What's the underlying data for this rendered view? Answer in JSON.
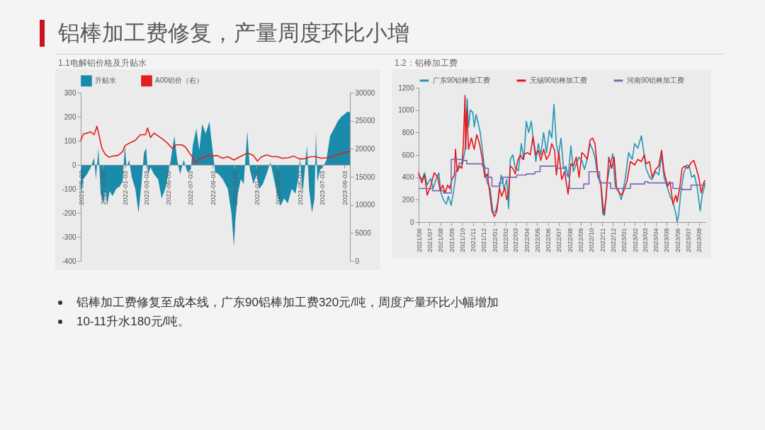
{
  "chart_data": [
    {
      "type": "area",
      "title": "1.1电解铝价格及升贴水",
      "legend": "top",
      "xlim": [
        "2021-09-03",
        "2023-09-18"
      ],
      "xticks": [
        "2021-09-03",
        "2021-11-03",
        "2022-01-03",
        "2022-03-03",
        "2022-05-03",
        "2022-07-03",
        "2022-09-03",
        "2022-11-03",
        "2023-01-03",
        "2023-03-03",
        "2023-05-03",
        "2023-07-03",
        "2023-09-03"
      ],
      "ylim": [
        -400,
        300
      ],
      "yticks": [
        -400,
        -300,
        -200,
        -100,
        0,
        100,
        200,
        300
      ],
      "y2lim": [
        0,
        30000
      ],
      "y2ticks": [
        0,
        5000,
        10000,
        15000,
        20000,
        25000,
        30000
      ],
      "series": [
        {
          "name": "升贴水",
          "type": "area",
          "color": "#1a8bab",
          "x": [
            "2021-09-03",
            "2021-09-10",
            "2021-09-20",
            "2021-10-01",
            "2021-10-10",
            "2021-10-15",
            "2021-10-22",
            "2021-10-28",
            "2021-11-05",
            "2021-11-10",
            "2021-11-15",
            "2021-11-22",
            "2021-11-30",
            "2021-12-10",
            "2021-12-20",
            "2021-12-28",
            "2022-01-03",
            "2022-01-08",
            "2022-01-15",
            "2022-01-22",
            "2022-02-01",
            "2022-02-10",
            "2022-02-18",
            "2022-02-25",
            "2022-03-03",
            "2022-03-08",
            "2022-03-15",
            "2022-03-25",
            "2022-04-05",
            "2022-04-15",
            "2022-04-25",
            "2022-05-03",
            "2022-05-10",
            "2022-05-20",
            "2022-05-28",
            "2022-06-05",
            "2022-06-15",
            "2022-06-25",
            "2022-07-05",
            "2022-07-10",
            "2022-07-20",
            "2022-07-28",
            "2022-08-05",
            "2022-08-15",
            "2022-08-25",
            "2022-09-03",
            "2022-09-10",
            "2022-09-20",
            "2022-10-01",
            "2022-10-15",
            "2022-10-25",
            "2022-11-01",
            "2022-11-05",
            "2022-11-12",
            "2022-11-20",
            "2022-11-28",
            "2022-12-08",
            "2022-12-15",
            "2022-12-25",
            "2023-01-03",
            "2023-01-10",
            "2023-01-20",
            "2023-01-30",
            "2023-02-10",
            "2023-02-20",
            "2023-02-28",
            "2023-03-10",
            "2023-03-20",
            "2023-03-30",
            "2023-04-10",
            "2023-04-20",
            "2023-04-28",
            "2023-05-03",
            "2023-05-10",
            "2023-05-15",
            "2023-05-22",
            "2023-05-28",
            "2023-06-05",
            "2023-06-12",
            "2023-06-16",
            "2023-06-20",
            "2023-06-28",
            "2023-07-05",
            "2023-07-15",
            "2023-07-25",
            "2023-08-05",
            "2023-08-15",
            "2023-08-25",
            "2023-09-03",
            "2023-09-10",
            "2023-09-18"
          ],
          "values": [
            -120,
            -60,
            -40,
            -10,
            30,
            -60,
            70,
            -120,
            -160,
            -100,
            -170,
            -110,
            -130,
            -100,
            -90,
            -70,
            80,
            -10,
            20,
            -50,
            -100,
            -200,
            -80,
            50,
            70,
            -40,
            -10,
            -40,
            -60,
            -140,
            -100,
            -40,
            20,
            120,
            20,
            -40,
            20,
            -30,
            -20,
            80,
            150,
            60,
            170,
            130,
            180,
            60,
            -30,
            -40,
            -60,
            -100,
            -200,
            -340,
            -230,
            -120,
            -60,
            -80,
            140,
            -20,
            -80,
            -40,
            -100,
            -80,
            -40,
            10,
            -60,
            -120,
            -170,
            -140,
            -160,
            -100,
            -120,
            -60,
            30,
            -120,
            -40,
            80,
            -100,
            -200,
            -140,
            140,
            -70,
            -20,
            -10,
            20,
            120,
            150,
            180,
            200,
            210,
            220,
            220
          ]
        },
        {
          "name": "A00铝价（右）",
          "type": "line",
          "axis": "y2",
          "color": "#e0201c",
          "x": [
            "2021-09-03",
            "2021-09-10",
            "2021-09-20",
            "2021-10-01",
            "2021-10-10",
            "2021-10-18",
            "2021-10-25",
            "2021-11-01",
            "2021-11-10",
            "2021-11-20",
            "2021-12-01",
            "2021-12-15",
            "2021-12-28",
            "2022-01-03",
            "2022-01-15",
            "2022-02-01",
            "2022-02-15",
            "2022-03-01",
            "2022-03-07",
            "2022-03-15",
            "2022-03-25",
            "2022-04-05",
            "2022-04-20",
            "2022-05-01",
            "2022-05-15",
            "2022-05-25",
            "2022-06-10",
            "2022-06-20",
            "2022-07-01",
            "2022-07-10",
            "2022-07-15",
            "2022-07-25",
            "2022-08-10",
            "2022-08-25",
            "2022-09-03",
            "2022-09-15",
            "2022-10-01",
            "2022-10-15",
            "2022-11-01",
            "2022-11-15",
            "2022-12-01",
            "2022-12-10",
            "2022-12-25",
            "2023-01-05",
            "2023-01-15",
            "2023-01-30",
            "2023-02-15",
            "2023-03-01",
            "2023-03-15",
            "2023-04-01",
            "2023-04-15",
            "2023-05-01",
            "2023-05-15",
            "2023-06-01",
            "2023-06-15",
            "2023-07-01",
            "2023-07-15",
            "2023-08-01",
            "2023-08-15",
            "2023-09-03",
            "2023-09-18"
          ],
          "values": [
            21500,
            22600,
            22800,
            23000,
            22500,
            24000,
            22000,
            20000,
            19000,
            18500,
            18700,
            18800,
            19500,
            20500,
            21000,
            21500,
            22500,
            22500,
            23700,
            22000,
            22800,
            22300,
            21600,
            21000,
            20000,
            20700,
            20700,
            20300,
            19200,
            18500,
            17500,
            18000,
            18500,
            18900,
            18700,
            18800,
            18300,
            18600,
            18000,
            18500,
            19000,
            19200,
            18800,
            17800,
            18500,
            18900,
            18600,
            18600,
            18300,
            18400,
            18700,
            18200,
            18200,
            18600,
            18600,
            18300,
            18400,
            18600,
            19000,
            19300,
            19500
          ]
        }
      ]
    },
    {
      "type": "line",
      "title": "1.2：铝棒加工费",
      "legend": "top",
      "xlim": [
        "2021-06-01",
        "2023-08-20"
      ],
      "xticks": [
        {
          "value": "2021-06",
          "label": "2021/06"
        },
        {
          "value": "2021-07",
          "label": "2021/07"
        },
        {
          "value": "2021-08",
          "label": "2021/08"
        },
        {
          "value": "2021-09",
          "label": "2021/09"
        },
        {
          "value": "2021-10",
          "label": "2021/10"
        },
        {
          "value": "2021-11",
          "label": "2021/11"
        },
        {
          "value": "2021-12",
          "label": "2021/12"
        },
        {
          "value": "2022-01",
          "label": "2022/01"
        },
        {
          "value": "2022-02",
          "label": "2022/02"
        },
        {
          "value": "2022-03",
          "label": "2022/03"
        },
        {
          "value": "2022-04",
          "label": "2022/04"
        },
        {
          "value": "2022-05",
          "label": "2022/05"
        },
        {
          "value": "2022-06",
          "label": "2022/06"
        },
        {
          "value": "2022-07",
          "label": "2022/07"
        },
        {
          "value": "2022-08",
          "label": "2022/08"
        },
        {
          "value": "2022-09",
          "label": "2022/09"
        },
        {
          "value": "2022-10",
          "label": "2022/10"
        },
        {
          "value": "2022-11",
          "label": "2022/11"
        },
        {
          "value": "2022-12",
          "label": "2022/12"
        },
        {
          "value": "2023-01",
          "label": "2023/01"
        },
        {
          "value": "2023-02",
          "label": "2023/02"
        },
        {
          "value": "2023-03",
          "label": "2023/03"
        },
        {
          "value": "2023-04",
          "label": "2023/04"
        },
        {
          "value": "2023-05",
          "label": "2023/05"
        },
        {
          "value": "2023-06",
          "label": "2023/06"
        },
        {
          "value": "2023-07",
          "label": "2023/07"
        },
        {
          "value": "2023-08",
          "label": "2023/08"
        }
      ],
      "ylim": [
        0,
        1200
      ],
      "yticks": [
        0,
        200,
        400,
        600,
        800,
        1000,
        1200
      ],
      "series": [
        {
          "name": "广东90铝棒加工费",
          "color": "#2596b8",
          "x": [
            "2021-06-01",
            "2021-06-10",
            "2021-06-18",
            "2021-06-25",
            "2021-07-05",
            "2021-07-12",
            "2021-07-20",
            "2021-07-28",
            "2021-08-03",
            "2021-08-10",
            "2021-08-18",
            "2021-08-24",
            "2021-09-01",
            "2021-09-08",
            "2021-09-15",
            "2021-09-25",
            "2021-10-03",
            "2021-10-10",
            "2021-10-16",
            "2021-10-20",
            "2021-10-25",
            "2021-11-01",
            "2021-11-05",
            "2021-11-10",
            "2021-11-15",
            "2021-11-22",
            "2021-11-28",
            "2021-12-05",
            "2021-12-12",
            "2021-12-20",
            "2021-12-28",
            "2022-01-05",
            "2022-01-12",
            "2022-01-20",
            "2022-01-28",
            "2022-02-05",
            "2022-02-10",
            "2022-02-15",
            "2022-02-22",
            "2022-03-01",
            "2022-03-10",
            "2022-03-18",
            "2022-03-25",
            "2022-04-01",
            "2022-04-08",
            "2022-04-15",
            "2022-04-22",
            "2022-04-28",
            "2022-05-05",
            "2022-05-12",
            "2022-05-20",
            "2022-05-28",
            "2022-06-05",
            "2022-06-12",
            "2022-06-18",
            "2022-06-25",
            "2022-07-01",
            "2022-07-08",
            "2022-07-15",
            "2022-07-22",
            "2022-07-28",
            "2022-08-05",
            "2022-08-12",
            "2022-08-20",
            "2022-08-28",
            "2022-09-05",
            "2022-09-12",
            "2022-09-20",
            "2022-09-28",
            "2022-10-05",
            "2022-10-12",
            "2022-10-20",
            "2022-10-28",
            "2022-11-03",
            "2022-11-08",
            "2022-11-15",
            "2022-11-22",
            "2022-12-01",
            "2022-12-08",
            "2022-12-15",
            "2022-12-25",
            "2023-01-05",
            "2023-01-15",
            "2023-01-25",
            "2023-02-01",
            "2023-02-10",
            "2023-02-20",
            "2023-02-28",
            "2023-03-05",
            "2023-03-15",
            "2023-03-22",
            "2023-04-01",
            "2023-04-10",
            "2023-04-18",
            "2023-04-25",
            "2023-05-05",
            "2023-05-12",
            "2023-05-20",
            "2023-05-28",
            "2023-06-01",
            "2023-06-05",
            "2023-06-12",
            "2023-06-20",
            "2023-06-28",
            "2023-07-05",
            "2023-07-12",
            "2023-07-20",
            "2023-07-28",
            "2023-08-05",
            "2023-08-10",
            "2023-08-18"
          ],
          "values": [
            420,
            380,
            440,
            330,
            390,
            300,
            380,
            440,
            260,
            200,
            160,
            230,
            150,
            280,
            450,
            530,
            520,
            640,
            1100,
            850,
            1000,
            980,
            850,
            960,
            900,
            800,
            650,
            450,
            350,
            300,
            80,
            100,
            200,
            420,
            300,
            380,
            120,
            560,
            600,
            480,
            460,
            700,
            560,
            900,
            800,
            900,
            700,
            540,
            700,
            600,
            800,
            620,
            820,
            750,
            1050,
            700,
            600,
            750,
            480,
            500,
            400,
            680,
            450,
            520,
            580,
            550,
            470,
            560,
            700,
            650,
            580,
            400,
            350,
            70,
            60,
            350,
            480,
            610,
            320,
            300,
            200,
            380,
            620,
            560,
            700,
            660,
            770,
            600,
            480,
            400,
            380,
            450,
            420,
            600,
            400,
            300,
            230,
            180,
            80,
            0,
            60,
            280,
            440,
            510,
            500,
            400,
            420,
            300,
            100,
            230,
            330
          ]
        },
        {
          "name": "无锡90铝棒加工费",
          "color": "#e8141c",
          "x": [
            "2021-06-01",
            "2021-06-10",
            "2021-06-18",
            "2021-06-25",
            "2021-07-05",
            "2021-07-15",
            "2021-07-25",
            "2021-08-01",
            "2021-08-08",
            "2021-08-15",
            "2021-08-22",
            "2021-08-28",
            "2021-09-03",
            "2021-09-10",
            "2021-09-13",
            "2021-09-18",
            "2021-09-25",
            "2021-10-01",
            "2021-10-05",
            "2021-10-10",
            "2021-10-12",
            "2021-10-15",
            "2021-10-20",
            "2021-10-28",
            "2021-11-05",
            "2021-11-12",
            "2021-11-20",
            "2021-11-28",
            "2021-12-05",
            "2021-12-12",
            "2021-12-18",
            "2021-12-25",
            "2022-01-01",
            "2022-01-08",
            "2022-01-15",
            "2022-01-22",
            "2022-01-30",
            "2022-02-05",
            "2022-02-10",
            "2022-02-15",
            "2022-02-22",
            "2022-03-01",
            "2022-03-08",
            "2022-03-15",
            "2022-03-22",
            "2022-03-28",
            "2022-04-05",
            "2022-04-12",
            "2022-04-20",
            "2022-04-28",
            "2022-05-05",
            "2022-05-12",
            "2022-05-20",
            "2022-05-28",
            "2022-06-05",
            "2022-06-12",
            "2022-06-20",
            "2022-06-25",
            "2022-07-02",
            "2022-07-10",
            "2022-07-18",
            "2022-07-28",
            "2022-08-05",
            "2022-08-12",
            "2022-08-20",
            "2022-08-28",
            "2022-09-05",
            "2022-09-12",
            "2022-09-20",
            "2022-09-28",
            "2022-10-05",
            "2022-10-12",
            "2022-10-20",
            "2022-10-28",
            "2022-11-02",
            "2022-11-06",
            "2022-11-12",
            "2022-11-20",
            "2022-11-28",
            "2022-12-05",
            "2022-12-12",
            "2022-12-20",
            "2022-12-28",
            "2023-01-10",
            "2023-01-20",
            "2023-02-01",
            "2023-02-10",
            "2023-02-20",
            "2023-02-28",
            "2023-03-05",
            "2023-03-15",
            "2023-03-22",
            "2023-04-01",
            "2023-04-10",
            "2023-04-18",
            "2023-04-25",
            "2023-05-05",
            "2023-05-12",
            "2023-05-20",
            "2023-05-28",
            "2023-06-01",
            "2023-06-08",
            "2023-06-15",
            "2023-06-22",
            "2023-07-01",
            "2023-07-10",
            "2023-07-18",
            "2023-07-25",
            "2023-08-01",
            "2023-08-08",
            "2023-08-14",
            "2023-08-18"
          ],
          "values": [
            440,
            350,
            420,
            240,
            320,
            440,
            400,
            280,
            330,
            260,
            330,
            300,
            380,
            420,
            650,
            450,
            500,
            480,
            680,
            1130,
            650,
            1000,
            650,
            750,
            650,
            780,
            700,
            560,
            400,
            430,
            280,
            100,
            50,
            100,
            300,
            230,
            310,
            200,
            270,
            500,
            480,
            430,
            550,
            600,
            560,
            610,
            620,
            600,
            760,
            600,
            640,
            550,
            650,
            560,
            600,
            700,
            640,
            420,
            620,
            380,
            450,
            250,
            520,
            500,
            580,
            400,
            620,
            600,
            560,
            730,
            750,
            700,
            430,
            360,
            200,
            70,
            200,
            580,
            480,
            580,
            300,
            260,
            240,
            360,
            540,
            510,
            560,
            540,
            600,
            520,
            540,
            400,
            470,
            500,
            640,
            450,
            320,
            360,
            160,
            240,
            180,
            300,
            480,
            500,
            480,
            530,
            550,
            480,
            400,
            260,
            340,
            370
          ]
        },
        {
          "name": "河南90铝棒加工费",
          "type": "step",
          "color": "#7a68b0",
          "x": [
            "2021-06-01",
            "2021-07-10",
            "2021-08-10",
            "2021-09-01",
            "2021-10-01",
            "2021-10-15",
            "2021-11-28",
            "2021-12-05",
            "2021-12-15",
            "2021-12-25",
            "2022-01-15",
            "2022-01-25",
            "2022-03-05",
            "2022-04-01",
            "2022-04-25",
            "2022-05-10",
            "2022-06-28",
            "2022-07-20",
            "2022-08-01",
            "2022-09-10",
            "2022-09-25",
            "2022-10-25",
            "2022-11-25",
            "2023-01-20",
            "2023-03-01",
            "2023-03-10",
            "2023-05-20",
            "2023-06-15",
            "2023-07-10",
            "2023-08-18"
          ],
          "values": [
            300,
            280,
            260,
            560,
            550,
            520,
            500,
            480,
            400,
            320,
            350,
            400,
            420,
            430,
            450,
            500,
            480,
            420,
            300,
            340,
            450,
            350,
            300,
            340,
            360,
            350,
            300,
            290,
            330,
            350
          ]
        }
      ]
    },
    {
      "type": "other",
      "title": "铝棒加工费修复，产量周度环比小增",
      "annotations": [
        "铝棒加工费修复至成本线，广东90铝棒加工费320元/吨，周度产量环比小幅增加",
        "10-11升水180元/吨。"
      ]
    }
  ]
}
